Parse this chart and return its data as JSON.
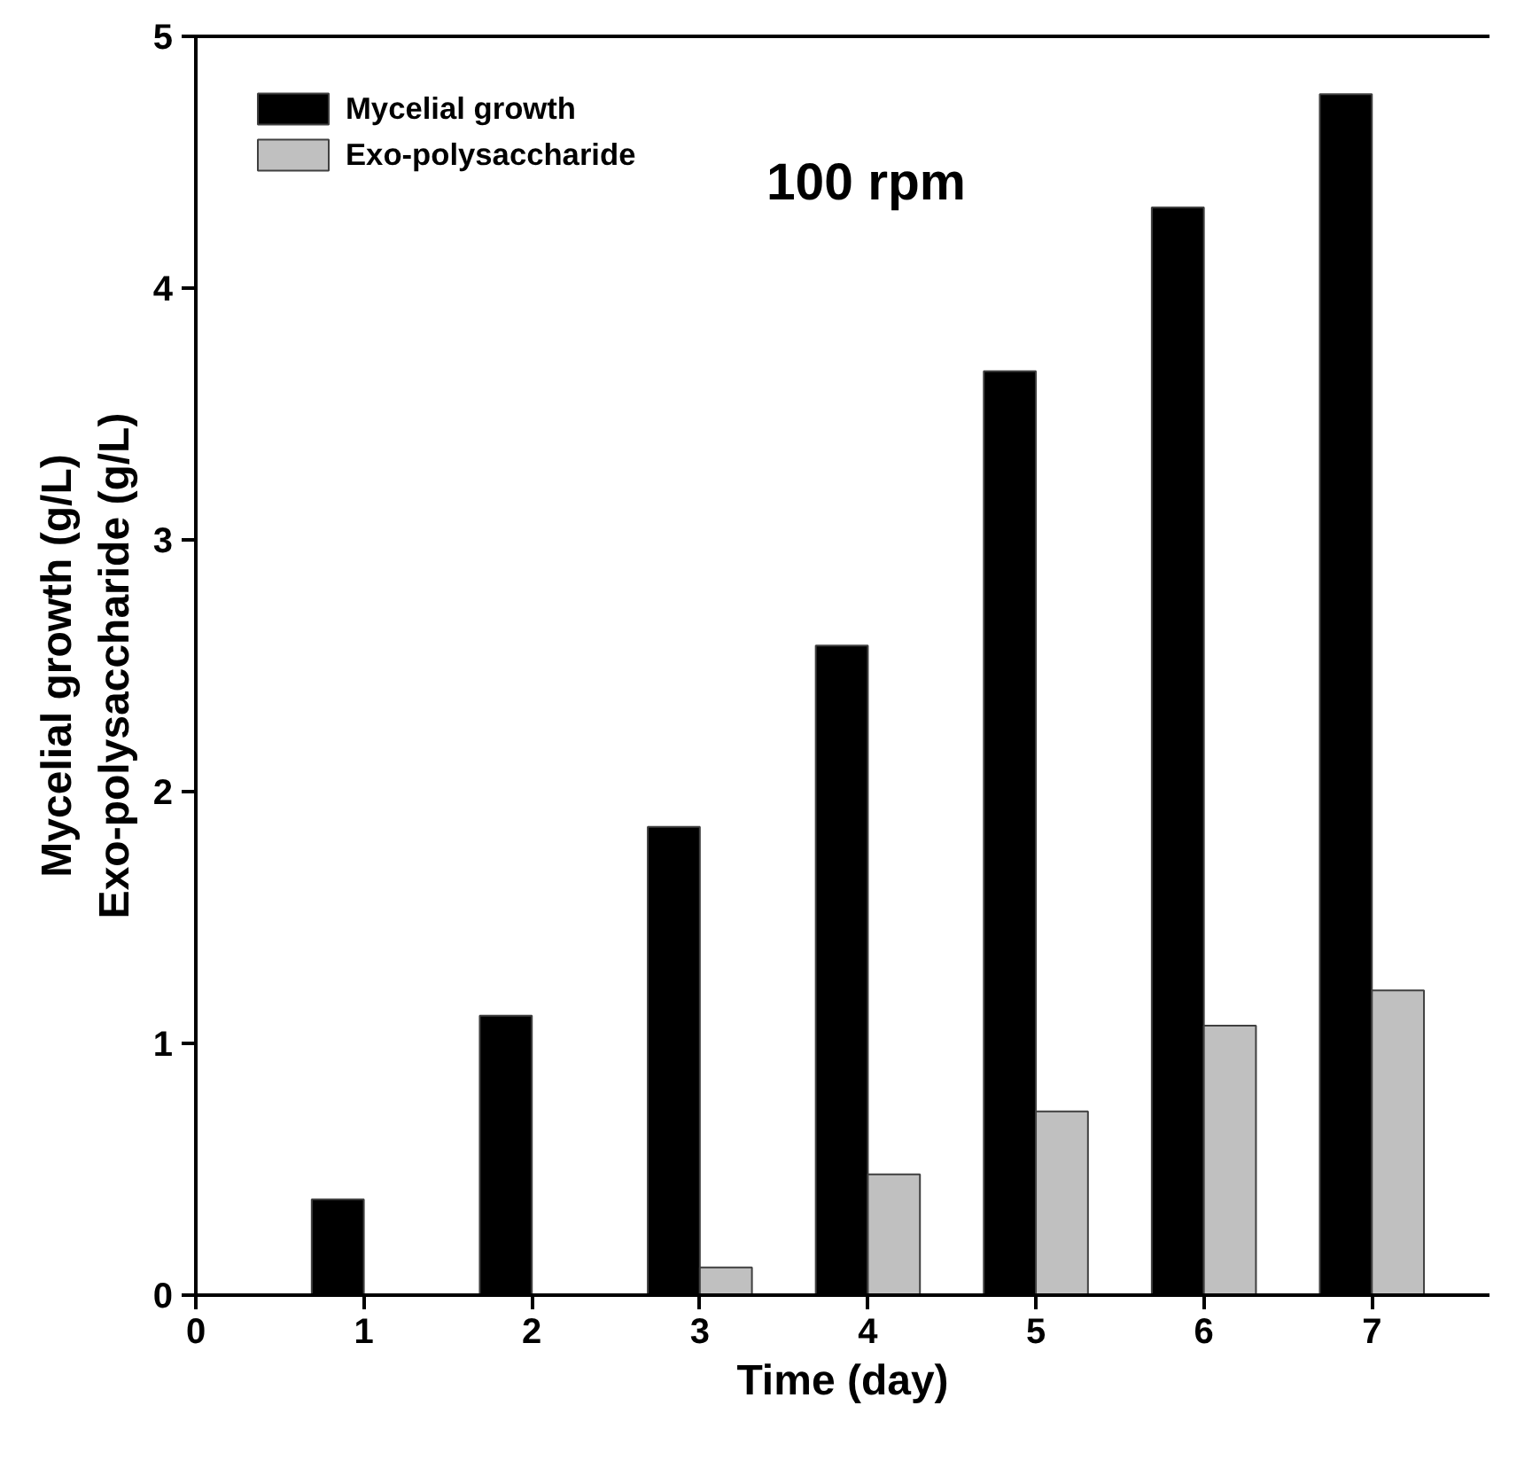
{
  "chart_data": {
    "type": "bar",
    "xlabel": "Time (day)",
    "ylabel": "Mycelial growth (g/L)\nExo-polysaccharide (g/L)",
    "x": [
      1,
      2,
      3,
      4,
      5,
      6,
      7
    ],
    "series": [
      {
        "name": "Mycelial growth",
        "color": "#000000",
        "values": [
          0.38,
          1.11,
          1.86,
          2.58,
          3.67,
          4.32,
          4.77
        ]
      },
      {
        "name": "Exo-polysaccharide",
        "color": "#c0c0c0",
        "values": [
          null,
          null,
          0.11,
          0.48,
          0.73,
          1.07,
          1.21
        ]
      }
    ],
    "annotations": [
      "100 rpm"
    ],
    "xlim": [
      0,
      7.7
    ],
    "xticks": [
      0,
      1,
      2,
      3,
      4,
      5,
      6,
      7
    ],
    "ylim": [
      0,
      5
    ],
    "yticks": [
      0,
      1,
      2,
      3,
      4,
      5
    ],
    "grid": false,
    "legend": "top left"
  }
}
